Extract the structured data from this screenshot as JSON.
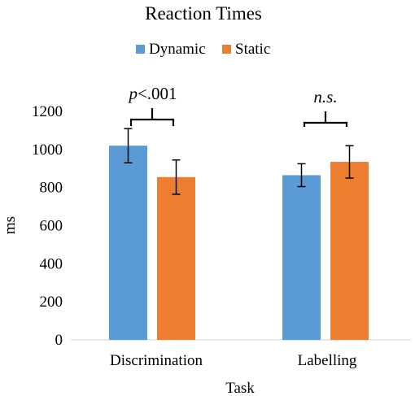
{
  "chart_data": {
    "type": "bar",
    "title": "Reaction Times",
    "xlabel": "Task",
    "ylabel": "ms",
    "ylim": [
      0,
      1200
    ],
    "yticks": [
      0,
      200,
      400,
      600,
      800,
      1000,
      1200
    ],
    "categories": [
      "Discrimination",
      "Labelling"
    ],
    "legend_position": "top-center",
    "grid": false,
    "series": [
      {
        "name": "Dynamic",
        "color": "#5B9BD5",
        "values": [
          1020,
          865
        ],
        "errors": [
          90,
          60
        ]
      },
      {
        "name": "Static",
        "color": "#ED7D31",
        "values": [
          855,
          935
        ],
        "errors": [
          90,
          85
        ]
      }
    ],
    "annotations": [
      {
        "category": "Discrimination",
        "text": "p<.001",
        "italic_prefix": "p",
        "rest": "<.001"
      },
      {
        "category": "Labelling",
        "text": "n.s.",
        "italic": true
      }
    ]
  }
}
